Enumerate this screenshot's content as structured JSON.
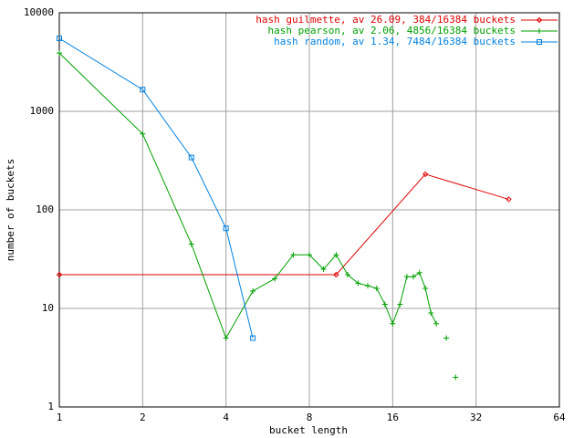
{
  "chart_data": {
    "type": "line",
    "xlabel": "bucket length",
    "ylabel": "number of buckets",
    "xscale": "log",
    "yscale": "log",
    "grid": true,
    "legend": "top-right",
    "xlim": [
      1,
      64
    ],
    "xticks": [
      1,
      2,
      4,
      8,
      16,
      32,
      64
    ],
    "ylim": [
      1,
      10000
    ],
    "yticks": [
      1,
      10,
      100,
      1000,
      10000
    ],
    "series": [
      {
        "name": "hash guilmette, av 26.09, 384/16384 buckets",
        "color": "#e00000",
        "marker": "diamond",
        "x": [
          1,
          10,
          21,
          42
        ],
        "values": [
          22,
          22,
          230,
          128
        ]
      },
      {
        "name": "hash pearson, av 2.06, 4856/16384 buckets",
        "color": "#00a000",
        "marker": "plus",
        "x": [
          1,
          2,
          3,
          4,
          5,
          6,
          7,
          8,
          9,
          10,
          11,
          12,
          13,
          14,
          15,
          16,
          17,
          18,
          19,
          20,
          21,
          22,
          23,
          24,
          25,
          26,
          27,
          28
        ],
        "values": [
          3900,
          590,
          45,
          5,
          15,
          20,
          35,
          35,
          25,
          35,
          22,
          18,
          17,
          16,
          11,
          7,
          11,
          21,
          21,
          23,
          16,
          9,
          7,
          null,
          5,
          null,
          2,
          null
        ]
      },
      {
        "name": "hash random, av 1.34, 7484/16384 buckets",
        "color": "#0080e0",
        "marker": "square",
        "x": [
          1,
          2,
          3,
          4,
          5
        ],
        "values": [
          5500,
          1660,
          340,
          65,
          5
        ]
      }
    ]
  }
}
